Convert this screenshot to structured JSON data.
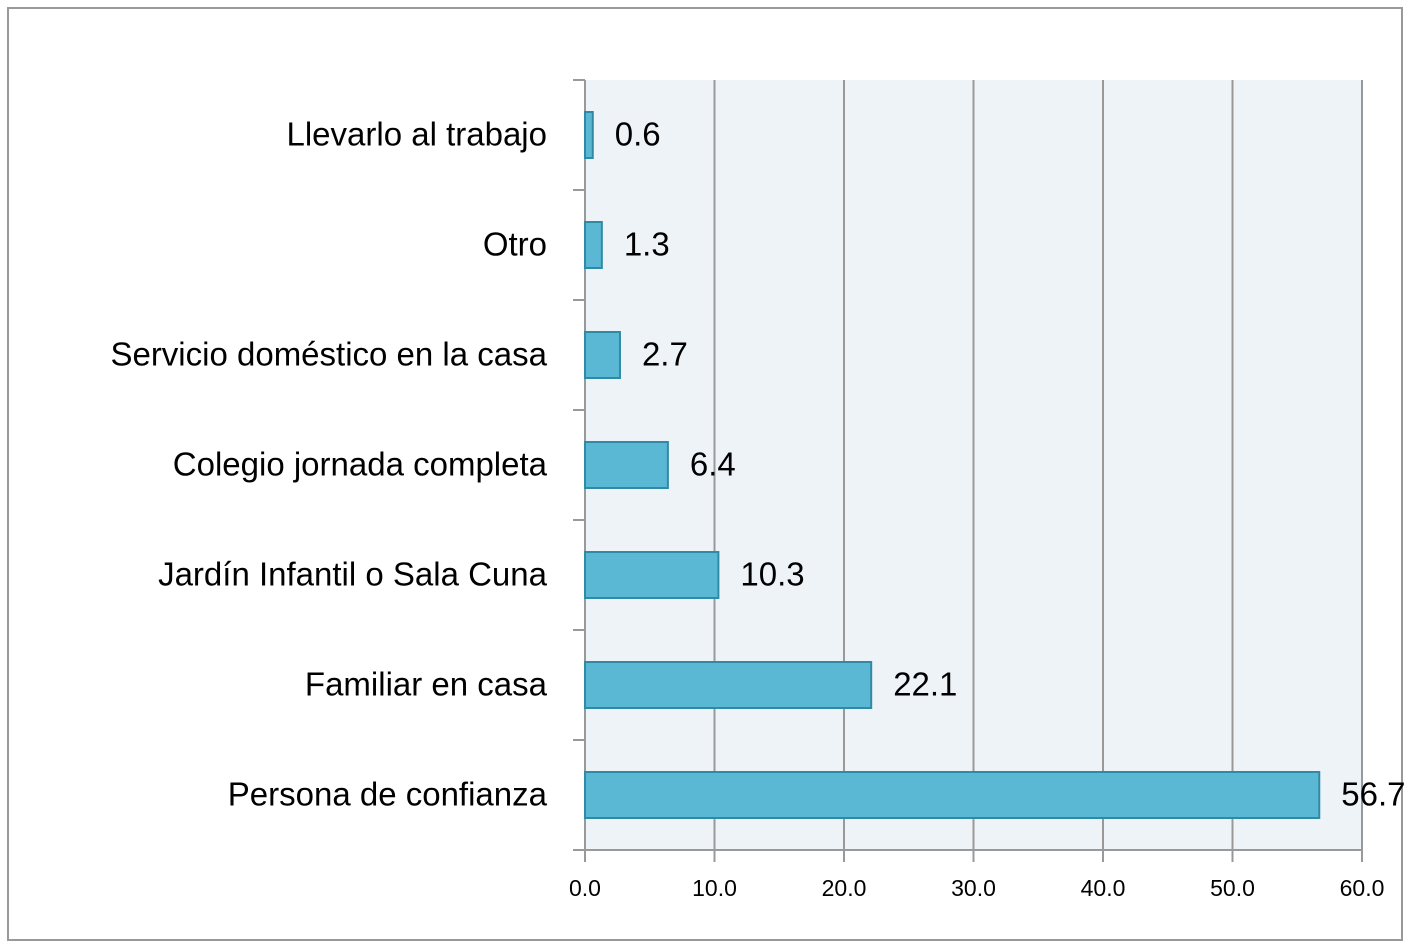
{
  "chart_data": {
    "type": "bar",
    "orientation": "horizontal",
    "categories": [
      "Llevarlo al trabajo",
      "Otro",
      "Servicio doméstico en la casa",
      "Colegio jornada completa",
      "Jardín Infantil o Sala Cuna",
      "Familiar en casa",
      "Persona de confianza"
    ],
    "values": [
      0.6,
      1.3,
      2.7,
      6.4,
      10.3,
      22.1,
      56.7
    ],
    "color": "#5bb8d4",
    "xlim": [
      0,
      60
    ],
    "xticks": [
      {
        "value": 0,
        "label": "0.0"
      },
      {
        "value": 10,
        "label": "10.0"
      },
      {
        "value": 20,
        "label": "20.0"
      },
      {
        "value": 30,
        "label": "30.0"
      },
      {
        "value": 40,
        "label": "40.0"
      },
      {
        "value": 50,
        "label": "50.0"
      },
      {
        "value": 60,
        "label": "60.0"
      }
    ],
    "grid": true
  }
}
